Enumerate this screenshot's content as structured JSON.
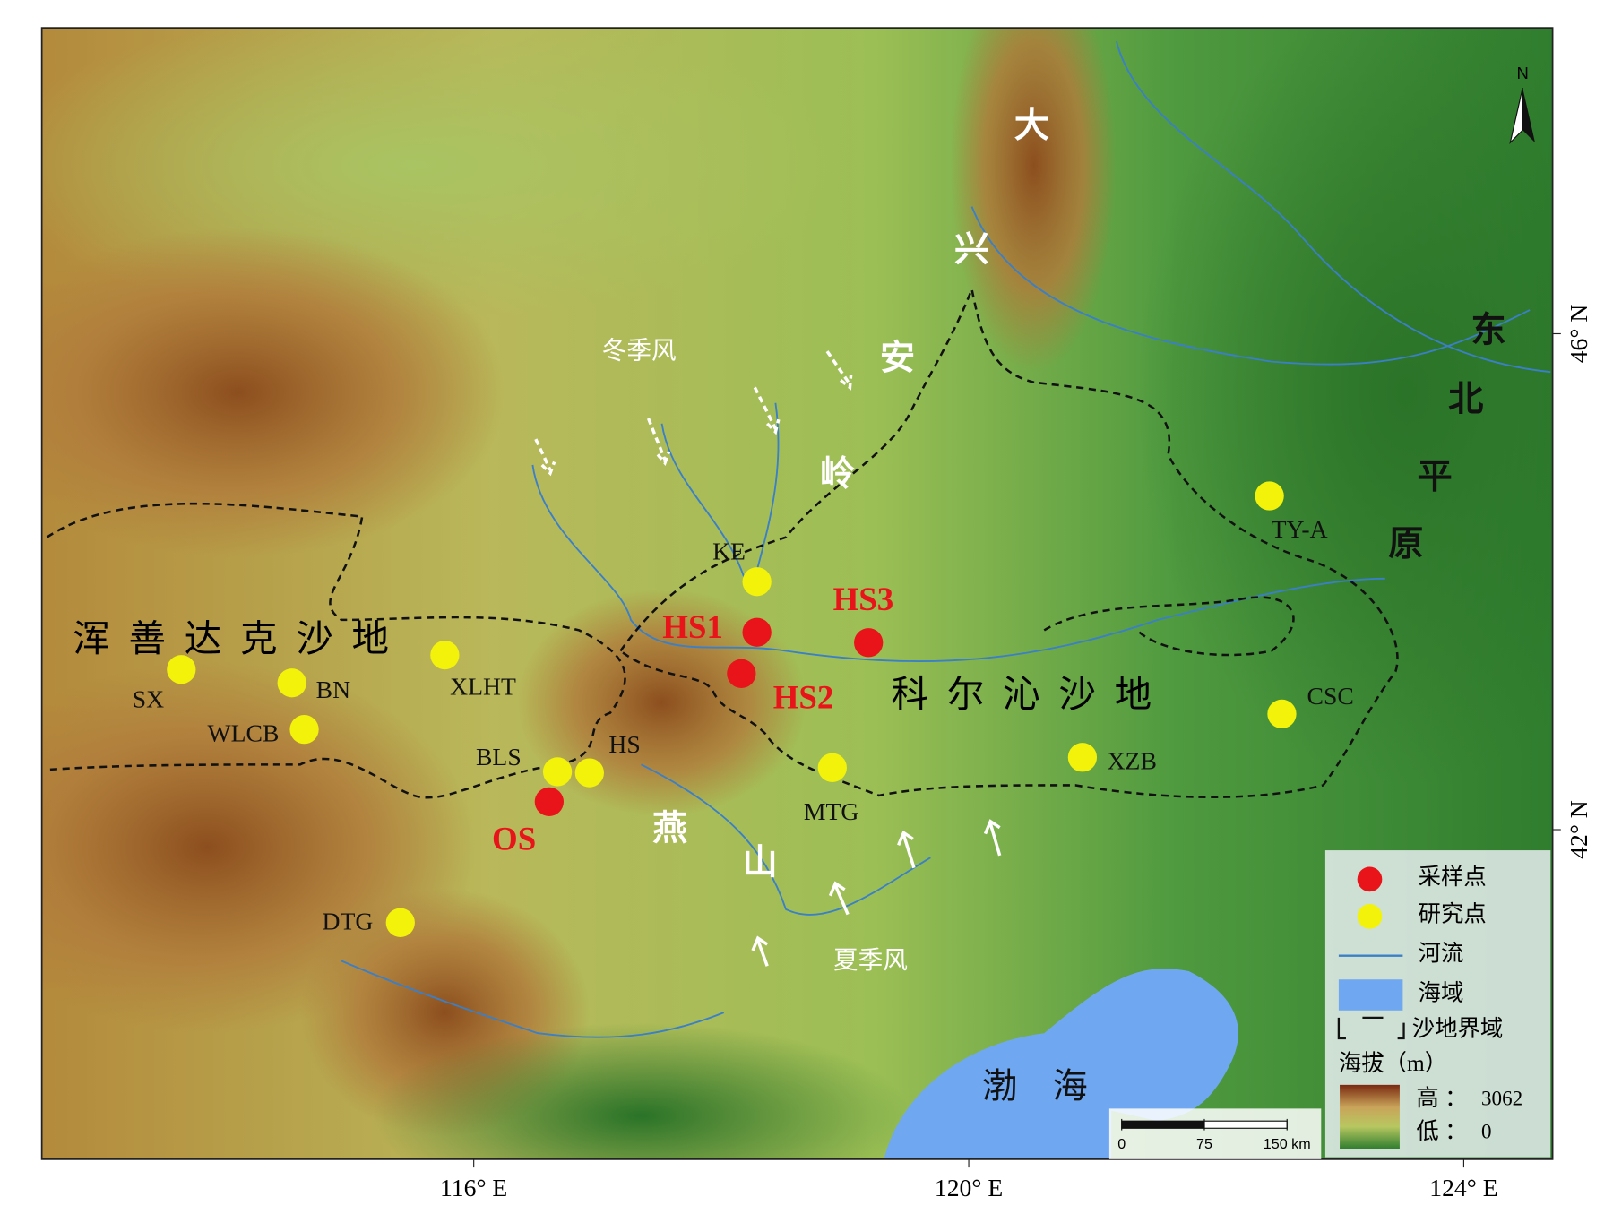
{
  "map": {
    "regions": {
      "hunshandake": "浑善达克沙地",
      "horqin": "科尔沁沙地",
      "bohai": "渤海",
      "da_xing_an_ling": [
        "大",
        "兴",
        "安",
        "岭"
      ],
      "northeast_plain": [
        "东",
        "北",
        "平",
        "原"
      ],
      "yan_shan": [
        "燕",
        "山"
      ]
    },
    "winds": {
      "winter": "冬季风",
      "summer": "夏季风"
    },
    "sampling_sites": [
      "HS1",
      "HS2",
      "HS3",
      "OS"
    ],
    "study_sites": [
      "SX",
      "BN",
      "XLHT",
      "WLCB",
      "BLS",
      "HS",
      "KE",
      "MTG",
      "TY-A",
      "CSC",
      "XZB",
      "DTG"
    ],
    "x_ticks": [
      "116° E",
      "120° E",
      "124° E"
    ],
    "y_ticks": [
      "46° N",
      "42° N"
    ],
    "north": "N",
    "scalebar": {
      "ticks": [
        0,
        75,
        {
          "value": 150,
          "label": "150 km"
        }
      ]
    },
    "legend": {
      "sampling": "采样点",
      "study": "研究点",
      "river": "河流",
      "sea": "海域",
      "sand": "沙地界域",
      "elevation": {
        "title": "海拔（m）",
        "high_label": "高 ：",
        "high": 3062,
        "low_label": "低 ：",
        "low": 0
      }
    }
  }
}
